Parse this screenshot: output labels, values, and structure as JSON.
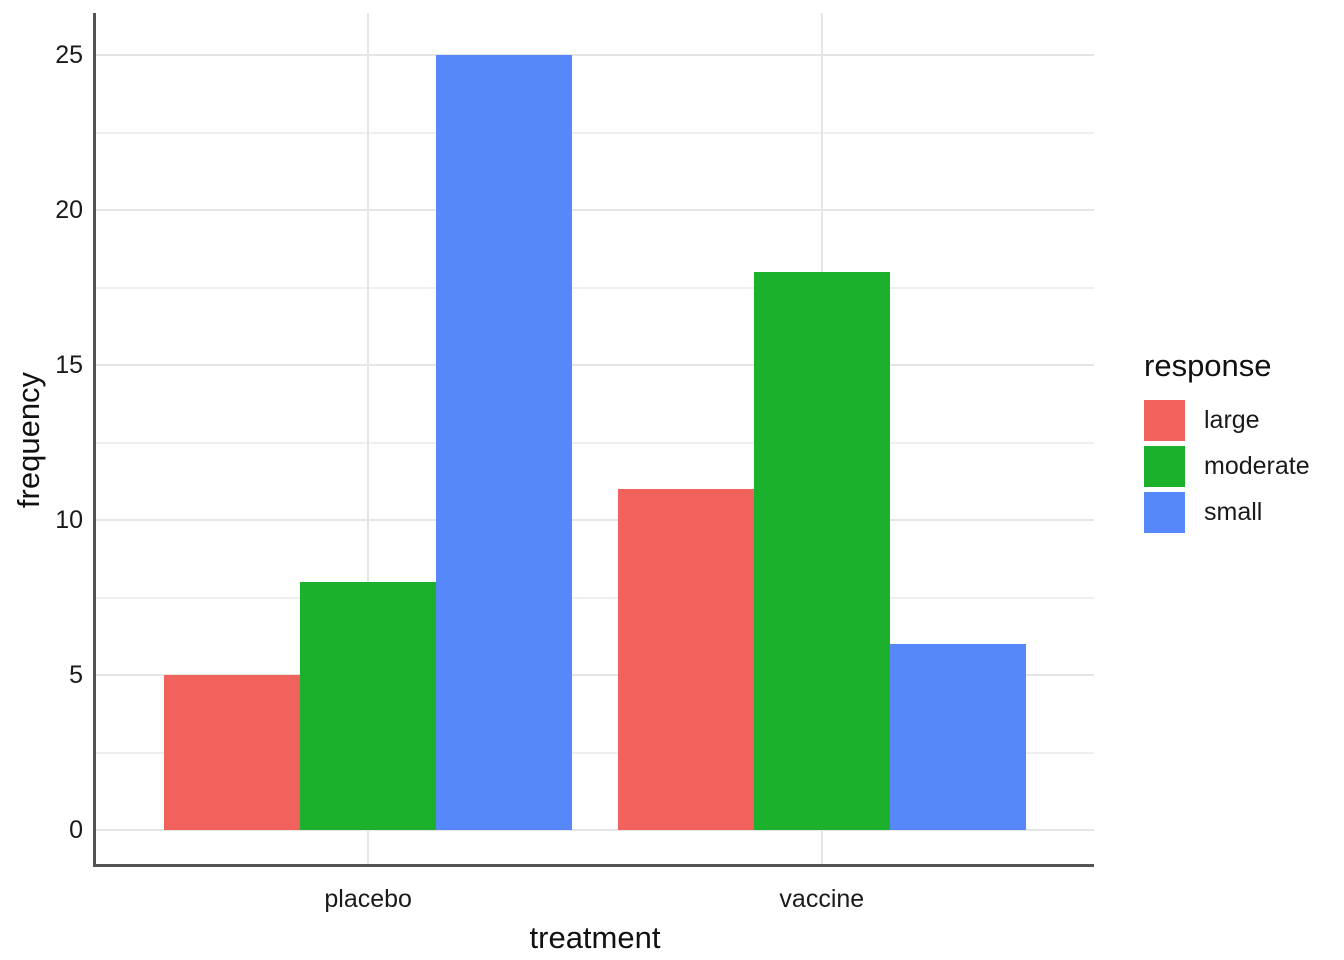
{
  "chart_data": {
    "type": "bar",
    "bar_layout": "dodged",
    "title": "",
    "xlabel": "treatment",
    "ylabel": "frequency",
    "categories": [
      "placebo",
      "vaccine"
    ],
    "series": [
      {
        "name": "large",
        "color": "#F2625D",
        "values": [
          5,
          11
        ]
      },
      {
        "name": "moderate",
        "color": "#1CB12C",
        "values": [
          8,
          18
        ]
      },
      {
        "name": "small",
        "color": "#5688FA",
        "values": [
          25,
          6
        ]
      }
    ],
    "ylim": [
      0,
      25
    ],
    "y_major_ticks": [
      0,
      5,
      10,
      15,
      20,
      25
    ],
    "y_minor_ticks": [
      2.5,
      7.5,
      12.5,
      17.5,
      22.5
    ],
    "grid": "horizontal major+minor and vertical category gridlines, light gray on white",
    "legend": {
      "title": "response",
      "position": "right",
      "entries": [
        "large",
        "moderate",
        "small"
      ]
    }
  },
  "styles": {
    "background": "#FFFFFF",
    "axis_line_color": "#545454",
    "grid_major_color": "#E5E5E5",
    "grid_minor_color": "#EFEFEF",
    "text_color": "#1A1A1A"
  }
}
